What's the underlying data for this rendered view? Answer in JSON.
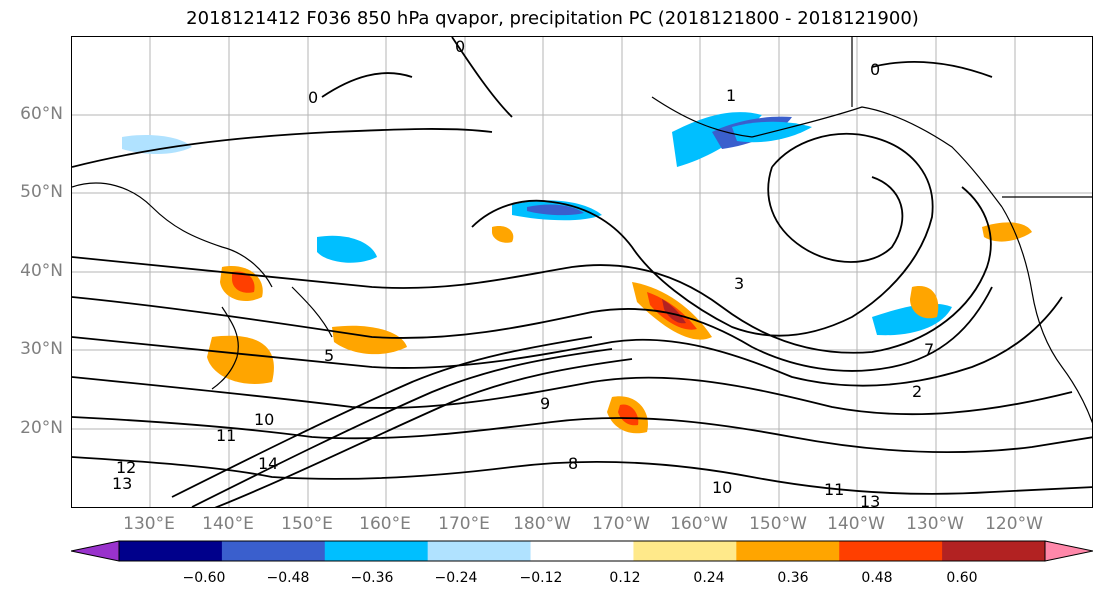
{
  "title": "2018121412 F036 850 hPa qvapor, precipitation PC (2018121800 - 2018121900)",
  "lat_labels": [
    "60°N",
    "50°N",
    "40°N",
    "30°N",
    "20°N"
  ],
  "lon_labels": [
    "130°E",
    "140°E",
    "150°E",
    "160°E",
    "170°E",
    "180°W",
    "170°W",
    "160°W",
    "150°W",
    "140°W",
    "130°W",
    "120°W"
  ],
  "contour_labels": [
    "0",
    "0",
    "0",
    "1",
    "3",
    "5",
    "7",
    "9",
    "10",
    "11",
    "12",
    "13",
    "14",
    "10",
    "11",
    "13",
    "2",
    "8"
  ],
  "colorbar": {
    "ticks": [
      "−0.60",
      "−0.48",
      "−0.36",
      "−0.24",
      "−0.12",
      "0.12",
      "0.24",
      "0.36",
      "0.48",
      "0.60"
    ],
    "colors": [
      "#9932cc",
      "#00008b",
      "#3a5fcd",
      "#00bfff",
      "#b0e2ff",
      "#ffffff",
      "#ffe98a",
      "#ffa500",
      "#ff3f00",
      "#b22222",
      "#ff88aa"
    ]
  }
}
